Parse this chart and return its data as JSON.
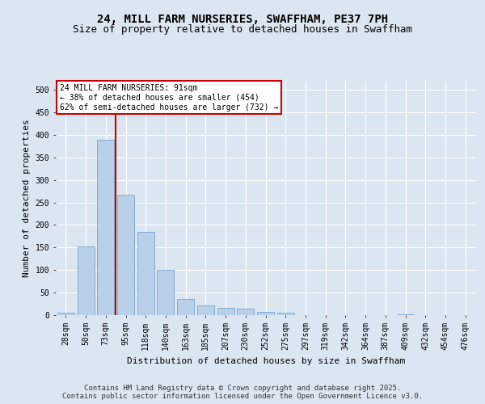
{
  "title_line1": "24, MILL FARM NURSERIES, SWAFFHAM, PE37 7PH",
  "title_line2": "Size of property relative to detached houses in Swaffham",
  "xlabel": "Distribution of detached houses by size in Swaffham",
  "ylabel": "Number of detached properties",
  "categories": [
    "28sqm",
    "50sqm",
    "73sqm",
    "95sqm",
    "118sqm",
    "140sqm",
    "163sqm",
    "185sqm",
    "207sqm",
    "230sqm",
    "252sqm",
    "275sqm",
    "297sqm",
    "319sqm",
    "342sqm",
    "364sqm",
    "387sqm",
    "409sqm",
    "432sqm",
    "454sqm",
    "476sqm"
  ],
  "values": [
    5,
    152,
    390,
    267,
    185,
    100,
    35,
    22,
    17,
    15,
    8,
    5,
    0,
    0,
    0,
    0,
    0,
    1,
    0,
    0,
    0
  ],
  "bar_color": "#b8d0e8",
  "bar_edge_color": "#6699cc",
  "figure_bg": "#dce6f1",
  "axes_bg": "#dce6f1",
  "grid_color": "#ffffff",
  "vline_x_pos": 2.5,
  "vline_color": "#cc0000",
  "annotation_text": "24 MILL FARM NURSERIES: 91sqm\n← 38% of detached houses are smaller (454)\n62% of semi-detached houses are larger (732) →",
  "annotation_box_edgecolor": "#cc0000",
  "ylim": [
    0,
    520
  ],
  "yticks": [
    0,
    50,
    100,
    150,
    200,
    250,
    300,
    350,
    400,
    450,
    500
  ],
  "footer_text": "Contains HM Land Registry data © Crown copyright and database right 2025.\nContains public sector information licensed under the Open Government Licence v3.0.",
  "title_fontsize": 10,
  "subtitle_fontsize": 9,
  "axis_label_fontsize": 8,
  "tick_fontsize": 7,
  "annotation_fontsize": 7,
  "footer_fontsize": 6.5
}
